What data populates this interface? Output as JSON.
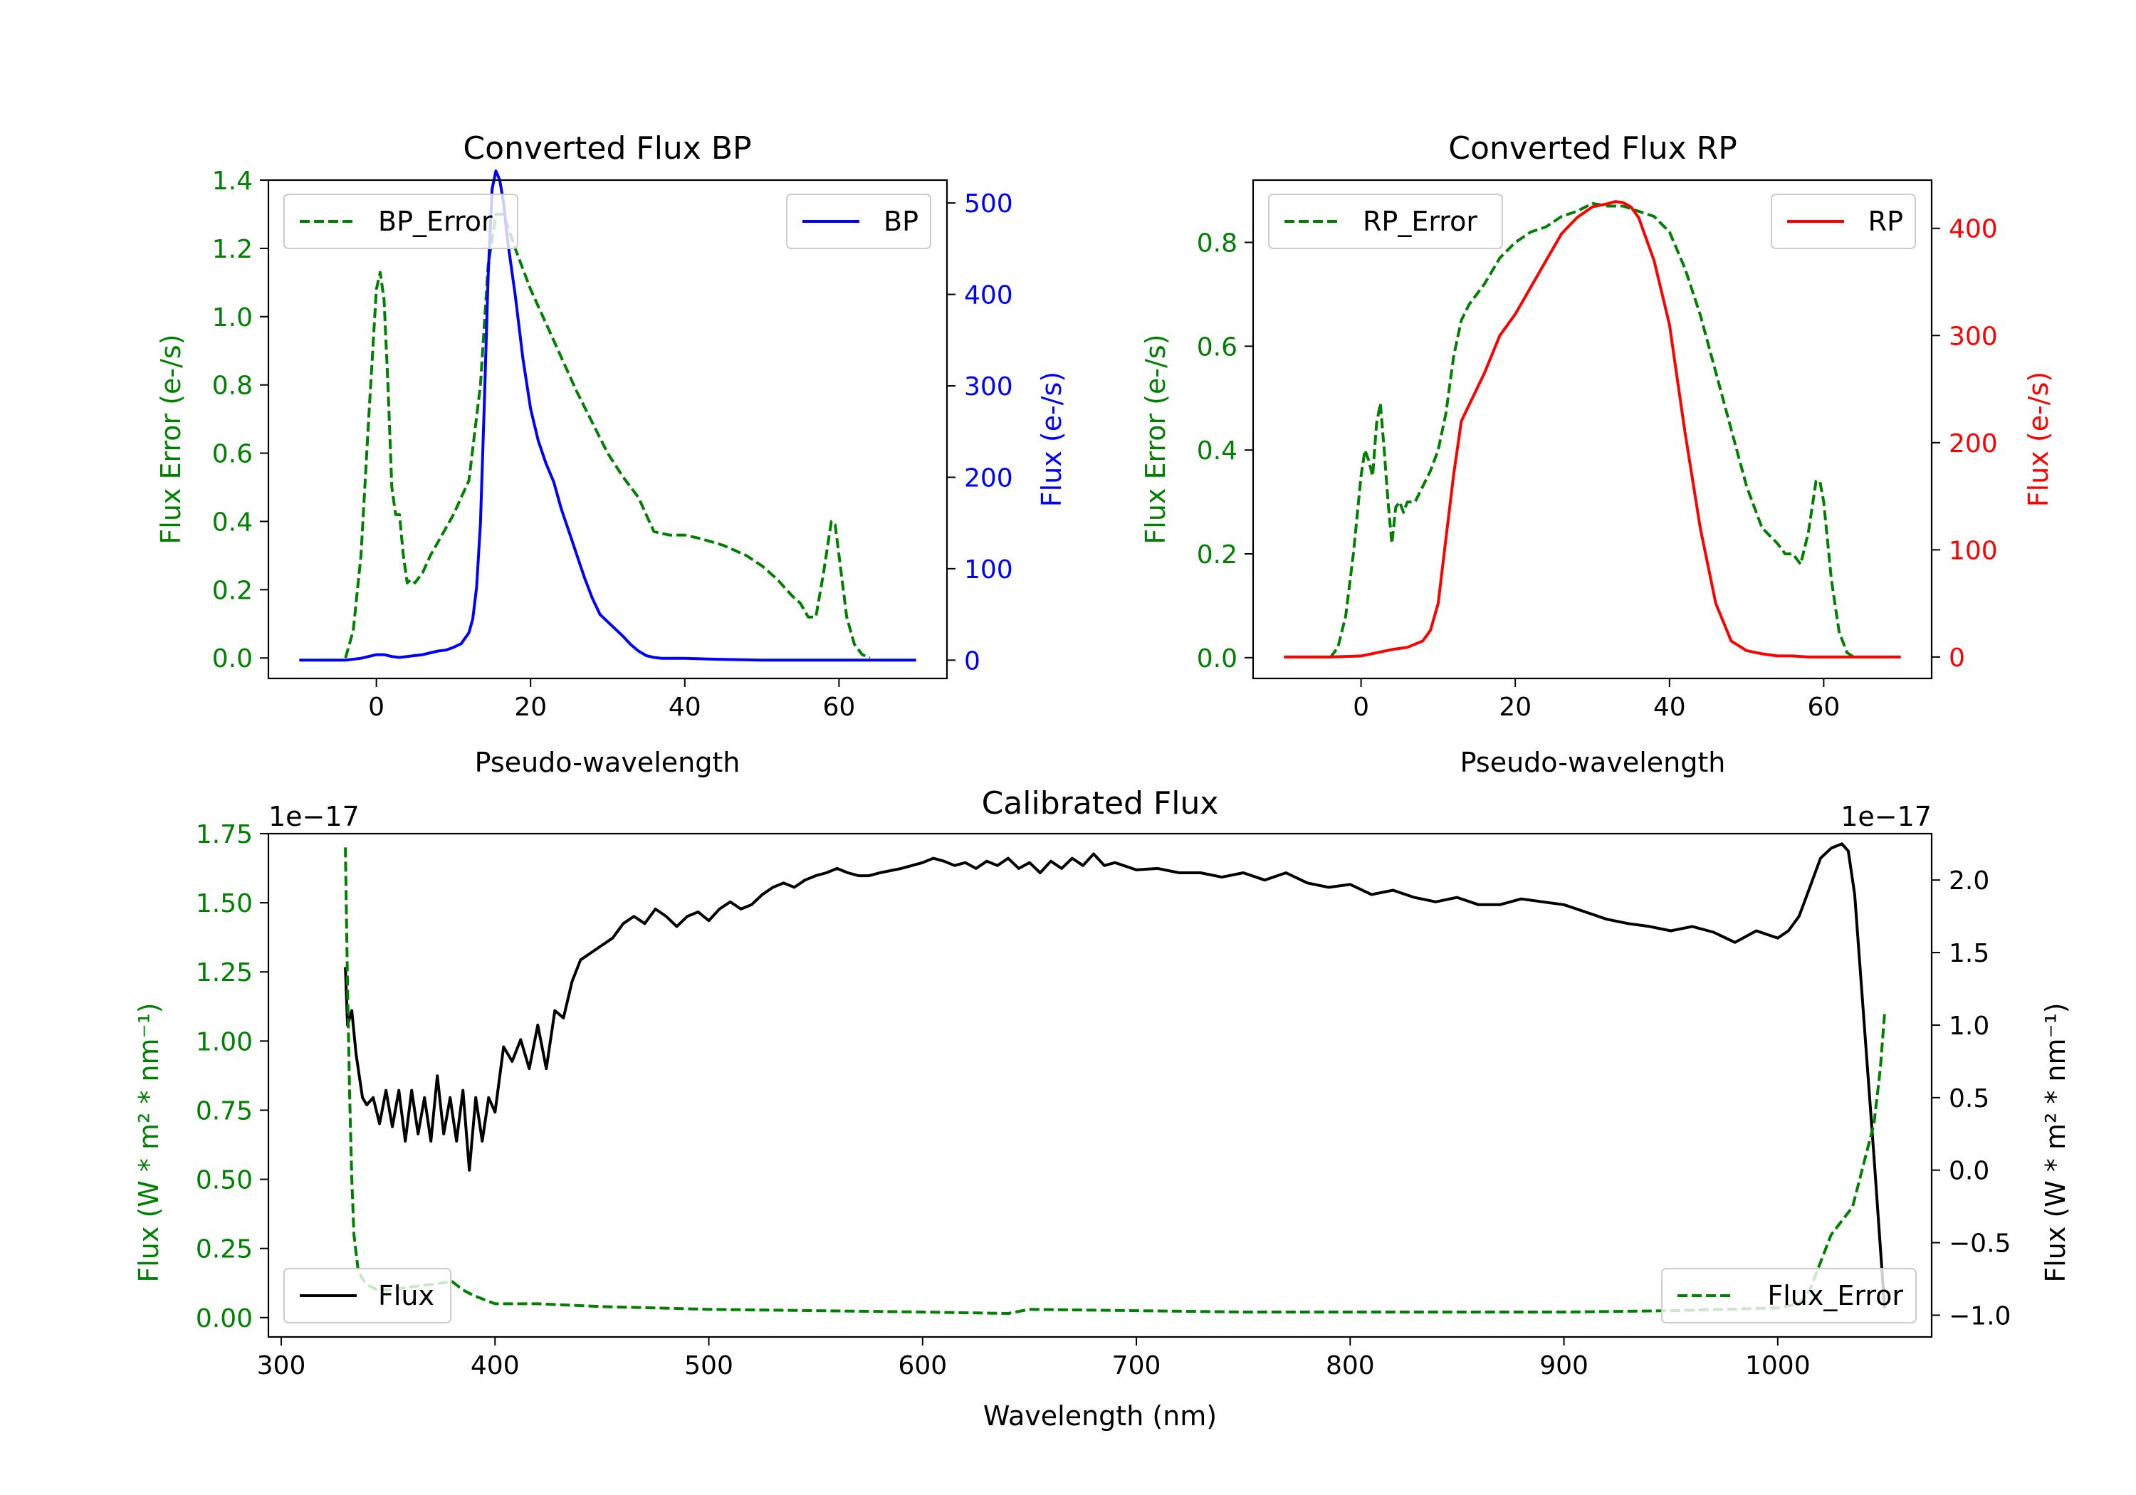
{
  "colors": {
    "green": "#008000",
    "blue": "#0000ff",
    "red": "#ff0000",
    "black": "#000000",
    "axis": "#000000",
    "legend_edge": "#cccccc"
  },
  "chart_data": [
    {
      "type": "line",
      "title": "Converted Flux BP",
      "xlabel": "Pseudo-wavelength",
      "xlim": [
        -14,
        74
      ],
      "xticks": [
        0,
        20,
        40,
        60
      ],
      "left_axis": {
        "label": "Flux Error (e-/s)",
        "ylim": [
          -0.06,
          1.4
        ],
        "ticks": [
          0.0,
          0.2,
          0.4,
          0.6,
          0.8,
          1.0,
          1.2,
          1.4
        ],
        "tick_labels": [
          "0.0",
          "0.2",
          "0.4",
          "0.6",
          "0.8",
          "1.0",
          "1.2",
          "1.4"
        ],
        "color": "#008000"
      },
      "right_axis": {
        "label": "Flux (e-/s)",
        "ylim": [
          -20,
          525
        ],
        "ticks": [
          0,
          100,
          200,
          300,
          400,
          500
        ],
        "tick_labels": [
          "0",
          "100",
          "200",
          "300",
          "400",
          "500"
        ],
        "color": "#0000ff"
      },
      "legend_left": {
        "label": "BP_Error",
        "position": "upper left"
      },
      "legend_right": {
        "label": "BP",
        "position": "upper right"
      },
      "series": [
        {
          "name": "BP_Error",
          "axis": "left",
          "style": "dashed",
          "color": "#008000",
          "x": [
            -4,
            -3,
            -2,
            -1,
            0,
            0.5,
            1,
            1.5,
            2,
            2.5,
            3,
            3.5,
            4,
            4.5,
            5,
            6,
            7,
            8,
            10,
            12,
            13.5,
            14.5,
            15.5,
            16.5,
            18,
            20,
            22,
            24,
            26,
            28,
            30,
            32,
            33,
            34,
            35,
            36,
            38,
            40,
            42,
            45,
            48,
            50,
            52,
            54,
            55,
            56,
            57,
            58,
            59,
            59.5,
            60,
            61,
            62,
            63,
            64
          ],
          "y": [
            0.0,
            0.08,
            0.3,
            0.7,
            1.08,
            1.13,
            1.05,
            0.8,
            0.5,
            0.42,
            0.42,
            0.3,
            0.22,
            0.23,
            0.22,
            0.25,
            0.3,
            0.34,
            0.42,
            0.52,
            0.8,
            1.15,
            1.3,
            1.3,
            1.2,
            1.08,
            0.98,
            0.88,
            0.78,
            0.69,
            0.6,
            0.53,
            0.5,
            0.47,
            0.42,
            0.37,
            0.36,
            0.36,
            0.35,
            0.33,
            0.3,
            0.27,
            0.23,
            0.18,
            0.16,
            0.12,
            0.12,
            0.25,
            0.4,
            0.39,
            0.3,
            0.12,
            0.04,
            0.01,
            0.0
          ]
        },
        {
          "name": "BP",
          "axis": "right",
          "style": "solid",
          "color": "#0000ff",
          "x": [
            -10,
            -6,
            -4,
            -2,
            0,
            1,
            2,
            3,
            4,
            5,
            6,
            7,
            8,
            9,
            10,
            11,
            12,
            12.5,
            13,
            13.5,
            14,
            14.5,
            15,
            15.5,
            16,
            16.5,
            17,
            18,
            19,
            20,
            21,
            22,
            23,
            24,
            25,
            26,
            27,
            28,
            29,
            30,
            31,
            32,
            33,
            34,
            35,
            36,
            37,
            38,
            40,
            44,
            50,
            56,
            60,
            65,
            70
          ],
          "y": [
            0,
            0,
            0,
            2,
            6,
            6,
            4,
            3,
            4,
            5,
            6,
            8,
            10,
            11,
            14,
            18,
            30,
            45,
            80,
            150,
            280,
            420,
            515,
            535,
            525,
            500,
            460,
            400,
            330,
            275,
            240,
            215,
            195,
            165,
            140,
            115,
            90,
            68,
            50,
            42,
            34,
            26,
            17,
            10,
            5,
            3,
            2,
            2,
            2,
            1,
            0,
            0,
            0,
            0,
            0
          ]
        }
      ]
    },
    {
      "type": "line",
      "title": "Converted Flux RP",
      "xlabel": "Pseudo-wavelength",
      "xlim": [
        -14,
        74
      ],
      "xticks": [
        0,
        20,
        40,
        60
      ],
      "left_axis": {
        "label": "Flux Error (e-/s)",
        "ylim": [
          -0.04,
          0.92
        ],
        "ticks": [
          0.0,
          0.2,
          0.4,
          0.6,
          0.8
        ],
        "tick_labels": [
          "0.0",
          "0.2",
          "0.4",
          "0.6",
          "0.8"
        ],
        "color": "#008000"
      },
      "right_axis": {
        "label": "Flux (e-/s)",
        "ylim": [
          -20,
          445
        ],
        "ticks": [
          0,
          100,
          200,
          300,
          400
        ],
        "tick_labels": [
          "0",
          "100",
          "200",
          "300",
          "400"
        ],
        "color": "#ff0000"
      },
      "legend_left": {
        "label": "RP_Error",
        "position": "upper left"
      },
      "legend_right": {
        "label": "RP",
        "position": "upper right"
      },
      "series": [
        {
          "name": "RP_Error",
          "axis": "left",
          "style": "dashed",
          "color": "#008000",
          "x": [
            -4,
            -3,
            -2,
            -1,
            0,
            0.5,
            1,
            1.5,
            2,
            2.5,
            3,
            3.5,
            4,
            4.5,
            5,
            5.5,
            6,
            7,
            8,
            9,
            10,
            11,
            12,
            13,
            14,
            16,
            18,
            20,
            22,
            24,
            26,
            28,
            30,
            32,
            34,
            36,
            38,
            40,
            42,
            44,
            46,
            48,
            50,
            52,
            54,
            55,
            56,
            57,
            58,
            59,
            59.5,
            60,
            61,
            62,
            63,
            64
          ],
          "y": [
            0.0,
            0.02,
            0.08,
            0.2,
            0.35,
            0.4,
            0.38,
            0.35,
            0.45,
            0.49,
            0.4,
            0.3,
            0.22,
            0.29,
            0.3,
            0.28,
            0.3,
            0.3,
            0.33,
            0.36,
            0.4,
            0.47,
            0.58,
            0.65,
            0.68,
            0.72,
            0.77,
            0.8,
            0.82,
            0.83,
            0.85,
            0.86,
            0.875,
            0.87,
            0.87,
            0.86,
            0.85,
            0.82,
            0.75,
            0.66,
            0.55,
            0.44,
            0.33,
            0.25,
            0.22,
            0.2,
            0.2,
            0.18,
            0.24,
            0.34,
            0.34,
            0.3,
            0.15,
            0.05,
            0.01,
            0.0
          ]
        },
        {
          "name": "RP",
          "axis": "right",
          "style": "solid",
          "color": "#ff0000",
          "x": [
            -10,
            -4,
            0,
            2,
            4,
            6,
            8,
            9,
            10,
            11,
            12,
            13,
            14,
            16,
            18,
            20,
            22,
            24,
            26,
            28,
            30,
            32,
            33,
            34,
            35,
            36,
            38,
            40,
            41,
            42,
            43,
            44,
            46,
            48,
            50,
            52,
            54,
            56,
            58,
            60,
            65,
            70
          ],
          "y": [
            0,
            0,
            1,
            4,
            7,
            9,
            15,
            25,
            50,
            110,
            170,
            220,
            235,
            265,
            300,
            320,
            345,
            370,
            395,
            410,
            420,
            423,
            425,
            424,
            420,
            410,
            370,
            310,
            260,
            210,
            165,
            120,
            50,
            15,
            6,
            3,
            1,
            1,
            0,
            0,
            0,
            0
          ]
        }
      ]
    },
    {
      "type": "line",
      "title": "Calibrated Flux",
      "xlabel": "Wavelength (nm)",
      "xlim": [
        294,
        1072
      ],
      "xticks": [
        300,
        400,
        500,
        600,
        700,
        800,
        900,
        1000
      ],
      "left_axis": {
        "label": "Flux (W * m² * nm⁻¹)",
        "offset_text": "1e−17",
        "ylim": [
          -0.07,
          1.75
        ],
        "ticks": [
          0.0,
          0.25,
          0.5,
          0.75,
          1.0,
          1.25,
          1.5,
          1.75
        ],
        "tick_labels": [
          "0.00",
          "0.25",
          "0.50",
          "0.75",
          "1.00",
          "1.25",
          "1.50",
          "1.75"
        ],
        "color": "#008000"
      },
      "right_axis": {
        "label": "Flux (W * m² * nm⁻¹)",
        "offset_text": "1e−17",
        "ylim": [
          -1.15,
          2.32
        ],
        "ticks": [
          -1.0,
          -0.5,
          0.0,
          0.5,
          1.0,
          1.5,
          2.0
        ],
        "tick_labels": [
          "−1.0",
          "−0.5",
          "0.0",
          "0.5",
          "1.0",
          "1.5",
          "2.0"
        ],
        "color": "#000000"
      },
      "legend_left": {
        "label": "Flux",
        "position": "lower left"
      },
      "legend_right": {
        "label": "Flux_Error",
        "position": "lower right"
      },
      "series": [
        {
          "name": "Flux",
          "axis": "right",
          "style": "solid",
          "color": "#000000",
          "x": [
            330,
            331,
            333,
            335,
            338,
            340,
            343,
            346,
            349,
            352,
            355,
            358,
            361,
            364,
            367,
            370,
            373,
            376,
            379,
            382,
            385,
            388,
            391,
            394,
            397,
            400,
            404,
            408,
            412,
            416,
            420,
            424,
            428,
            432,
            436,
            440,
            445,
            450,
            455,
            460,
            465,
            470,
            475,
            480,
            485,
            490,
            495,
            500,
            505,
            510,
            515,
            520,
            525,
            530,
            535,
            540,
            545,
            550,
            555,
            560,
            565,
            570,
            575,
            580,
            590,
            600,
            605,
            610,
            615,
            620,
            625,
            630,
            635,
            640,
            645,
            650,
            655,
            660,
            665,
            670,
            675,
            680,
            685,
            690,
            700,
            710,
            720,
            730,
            740,
            750,
            760,
            770,
            780,
            790,
            800,
            810,
            820,
            830,
            840,
            850,
            860,
            870,
            880,
            890,
            900,
            910,
            920,
            930,
            940,
            950,
            960,
            970,
            980,
            990,
            1000,
            1005,
            1010,
            1015,
            1020,
            1025,
            1030,
            1033,
            1036,
            1040,
            1045,
            1050
          ],
          "y": [
            1.4,
            1.0,
            1.1,
            0.8,
            0.5,
            0.45,
            0.5,
            0.32,
            0.55,
            0.3,
            0.55,
            0.2,
            0.55,
            0.25,
            0.5,
            0.2,
            0.65,
            0.25,
            0.5,
            0.2,
            0.55,
            0.0,
            0.5,
            0.2,
            0.5,
            0.4,
            0.85,
            0.75,
            0.9,
            0.7,
            1.0,
            0.7,
            1.1,
            1.05,
            1.3,
            1.45,
            1.5,
            1.55,
            1.6,
            1.7,
            1.75,
            1.7,
            1.8,
            1.75,
            1.68,
            1.75,
            1.78,
            1.72,
            1.8,
            1.85,
            1.8,
            1.83,
            1.9,
            1.95,
            1.98,
            1.95,
            2.0,
            2.03,
            2.05,
            2.08,
            2.05,
            2.03,
            2.03,
            2.05,
            2.08,
            2.12,
            2.15,
            2.13,
            2.1,
            2.12,
            2.08,
            2.13,
            2.1,
            2.15,
            2.08,
            2.12,
            2.05,
            2.13,
            2.08,
            2.15,
            2.1,
            2.18,
            2.1,
            2.12,
            2.07,
            2.08,
            2.05,
            2.05,
            2.02,
            2.05,
            2.0,
            2.05,
            1.98,
            1.95,
            1.97,
            1.9,
            1.93,
            1.88,
            1.85,
            1.88,
            1.83,
            1.83,
            1.87,
            1.85,
            1.83,
            1.78,
            1.73,
            1.7,
            1.68,
            1.65,
            1.68,
            1.64,
            1.57,
            1.65,
            1.6,
            1.65,
            1.75,
            1.95,
            2.15,
            2.22,
            2.25,
            2.2,
            1.9,
            1.1,
            0.1,
            -0.95
          ]
        },
        {
          "name": "Flux_Error",
          "axis": "left",
          "style": "dashed",
          "color": "#008000",
          "x": [
            330,
            331,
            332,
            333,
            334,
            336,
            338,
            340,
            345,
            350,
            360,
            370,
            380,
            385,
            390,
            400,
            420,
            450,
            500,
            550,
            600,
            640,
            650,
            700,
            750,
            800,
            850,
            900,
            950,
            975,
            1000,
            1010,
            1015,
            1020,
            1025,
            1030,
            1035,
            1040,
            1045,
            1048,
            1050
          ],
          "y": [
            1.7,
            1.2,
            0.8,
            0.5,
            0.3,
            0.17,
            0.14,
            0.12,
            0.1,
            0.1,
            0.11,
            0.12,
            0.13,
            0.1,
            0.08,
            0.05,
            0.05,
            0.04,
            0.03,
            0.025,
            0.02,
            0.015,
            0.03,
            0.025,
            0.02,
            0.02,
            0.02,
            0.02,
            0.025,
            0.03,
            0.035,
            0.05,
            0.1,
            0.2,
            0.3,
            0.35,
            0.4,
            0.55,
            0.7,
            0.9,
            1.1
          ]
        }
      ]
    }
  ]
}
